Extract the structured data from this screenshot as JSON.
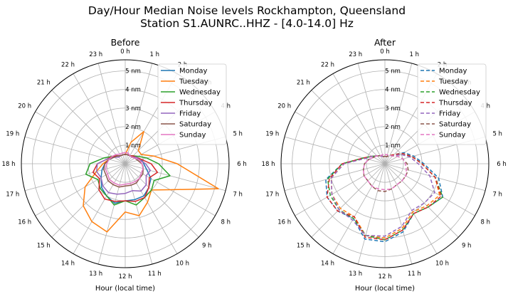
{
  "figure": {
    "title_line1": "Day/Hour Median Noise levels Rockhampton, Queensland",
    "title_line2": "Station S1.AUNRC..HHZ - [4.0-14.0] Hz"
  },
  "colors": {
    "Monday": "#1f77b4",
    "Tuesday": "#ff7f0e",
    "Wednesday": "#2ca02c",
    "Thursday": "#d62728",
    "Friday": "#9467bd",
    "Saturday": "#8c564b",
    "Sunday": "#e377c2"
  },
  "chart_data": [
    {
      "type": "line",
      "subtype": "polar",
      "title": "Before",
      "xlabel": "Hour (local time)",
      "angular_ticks": [
        "0 h",
        "1 h",
        "2 h",
        "3 h",
        "4 h",
        "5 h",
        "6 h",
        "7 h",
        "8 h",
        "9 h",
        "10 h",
        "11 h",
        "12 h",
        "13 h",
        "14 h",
        "15 h",
        "16 h",
        "17 h",
        "18 h",
        "19 h",
        "20 h",
        "21 h",
        "22 h",
        "23 h"
      ],
      "radial_ticks": [
        "1 nm",
        "2 nm",
        "3 nm",
        "4 nm",
        "5 nm"
      ],
      "radial_tick_values": [
        1,
        2,
        3,
        4,
        5
      ],
      "rlim": [
        0,
        5.6
      ],
      "direction": "clockwise",
      "zero_location": "top",
      "line_style": "solid",
      "legend_position": "top-right",
      "x": [
        0,
        1,
        2,
        3,
        4,
        5,
        6,
        7,
        8,
        9,
        10,
        11,
        12,
        13,
        14,
        15,
        16,
        17,
        18,
        19,
        20,
        21,
        22,
        23
      ],
      "series": [
        {
          "name": "Monday",
          "values": [
            0.5,
            0.5,
            0.5,
            0.6,
            0.7,
            0.9,
            1.0,
            1.2,
            1.6,
            1.8,
            2.0,
            2.0,
            2.0,
            2.2,
            2.0,
            1.8,
            1.5,
            1.3,
            1.1,
            0.9,
            0.7,
            0.6,
            0.5,
            0.5
          ]
        },
        {
          "name": "Tuesday",
          "values": [
            0.5,
            1.2,
            2.0,
            1.0,
            1.0,
            1.6,
            2.8,
            5.2,
            2.8,
            2.0,
            2.4,
            2.9,
            2.6,
            3.8,
            3.6,
            3.2,
            2.5,
            1.6,
            1.2,
            0.9,
            0.8,
            0.6,
            0.5,
            0.5
          ]
        },
        {
          "name": "Wednesday",
          "values": [
            0.5,
            0.5,
            0.5,
            0.6,
            0.8,
            1.2,
            1.8,
            2.5,
            1.8,
            2.0,
            2.1,
            2.3,
            2.0,
            2.3,
            2.0,
            1.9,
            1.7,
            2.2,
            1.9,
            1.2,
            0.8,
            0.6,
            0.5,
            0.5
          ]
        },
        {
          "name": "Thursday",
          "values": [
            0.5,
            0.5,
            0.5,
            0.6,
            0.7,
            0.9,
            1.4,
            1.8,
            1.5,
            1.8,
            2.1,
            2.1,
            2.0,
            2.1,
            2.2,
            2.0,
            1.6,
            1.8,
            1.5,
            1.0,
            0.8,
            0.6,
            0.5,
            0.5
          ]
        },
        {
          "name": "Friday",
          "values": [
            0.5,
            0.5,
            0.5,
            0.5,
            0.7,
            0.8,
            1.1,
            1.4,
            1.3,
            1.6,
            1.7,
            1.5,
            1.6,
            1.7,
            1.8,
            1.7,
            1.5,
            1.6,
            1.5,
            1.0,
            0.7,
            0.5,
            0.5,
            0.5
          ]
        },
        {
          "name": "Saturday",
          "values": [
            0.5,
            0.5,
            0.5,
            0.5,
            0.6,
            0.7,
            0.9,
            1.0,
            1.1,
            1.1,
            1.2,
            1.2,
            1.2,
            1.3,
            1.3,
            1.3,
            1.2,
            1.2,
            1.1,
            0.9,
            0.7,
            0.6,
            0.5,
            0.5
          ]
        },
        {
          "name": "Sunday",
          "values": [
            0.6,
            0.6,
            0.5,
            0.5,
            0.6,
            0.8,
            0.9,
            1.0,
            1.0,
            1.1,
            1.1,
            1.1,
            1.1,
            1.2,
            1.2,
            1.2,
            1.1,
            1.1,
            1.0,
            0.9,
            0.8,
            0.7,
            0.6,
            0.6
          ]
        }
      ]
    },
    {
      "type": "line",
      "subtype": "polar",
      "title": "After",
      "xlabel": "Hour (local time)",
      "angular_ticks": [
        "0 h",
        "1 h",
        "2 h",
        "3 h",
        "4 h",
        "5 h",
        "6 h",
        "7 h",
        "8 h",
        "9 h",
        "10 h",
        "11 h",
        "12 h",
        "13 h",
        "14 h",
        "15 h",
        "16 h",
        "17 h",
        "18 h",
        "19 h",
        "20 h",
        "21 h",
        "22 h",
        "23 h"
      ],
      "radial_ticks": [
        "1 nm",
        "2 nm",
        "3 nm",
        "4 nm",
        "5 nm"
      ],
      "radial_tick_values": [
        1,
        2,
        3,
        4,
        5
      ],
      "rlim": [
        0,
        5.6
      ],
      "direction": "clockwise",
      "zero_location": "top",
      "line_style": "dashed",
      "legend_position": "top-right",
      "x": [
        0,
        1,
        2,
        3,
        4,
        5,
        6,
        7,
        8,
        9,
        10,
        11,
        12,
        13,
        14,
        15,
        16,
        17,
        18,
        19,
        20,
        21,
        22,
        23
      ],
      "series": [
        {
          "name": "Monday",
          "values": [
            0.4,
            0.4,
            0.5,
            0.7,
            1.2,
            1.6,
            2.1,
            3.0,
            3.6,
            3.3,
            3.1,
            3.8,
            4.2,
            4.2,
            3.4,
            3.6,
            3.6,
            3.3,
            2.3,
            1.2,
            0.8,
            0.6,
            0.5,
            0.4
          ]
        },
        {
          "name": "Tuesday",
          "values": [
            0.4,
            0.4,
            0.5,
            0.7,
            1.1,
            1.5,
            2.0,
            2.8,
            3.4,
            3.2,
            3.0,
            3.6,
            4.0,
            4.0,
            3.3,
            3.4,
            3.3,
            3.0,
            2.2,
            1.2,
            0.8,
            0.6,
            0.5,
            0.4
          ]
        },
        {
          "name": "Wednesday",
          "values": [
            0.4,
            0.4,
            0.5,
            0.7,
            1.1,
            1.5,
            2.0,
            2.8,
            3.6,
            3.3,
            3.1,
            3.7,
            4.1,
            4.0,
            3.4,
            3.5,
            3.4,
            3.2,
            2.3,
            1.2,
            0.8,
            0.6,
            0.5,
            0.4
          ]
        },
        {
          "name": "Thursday",
          "values": [
            0.4,
            0.4,
            0.5,
            0.7,
            1.1,
            1.5,
            2.0,
            2.8,
            3.5,
            3.3,
            3.1,
            3.7,
            4.1,
            4.1,
            3.3,
            3.6,
            3.6,
            3.1,
            2.3,
            1.2,
            0.8,
            0.6,
            0.5,
            0.4
          ]
        },
        {
          "name": "Friday",
          "values": [
            0.4,
            0.4,
            0.5,
            0.6,
            1.0,
            1.4,
            1.8,
            2.5,
            3.1,
            3.0,
            2.9,
            3.5,
            3.9,
            4.0,
            3.5,
            3.5,
            3.3,
            3.0,
            2.2,
            1.1,
            0.8,
            0.6,
            0.5,
            0.4
          ]
        },
        {
          "name": "Saturday",
          "values": [
            0.4,
            0.4,
            0.5,
            0.6,
            0.8,
            1.0,
            1.2,
            1.3,
            1.3,
            1.3,
            1.3,
            1.4,
            1.5,
            1.5,
            1.4,
            1.3,
            1.3,
            1.2,
            1.1,
            0.9,
            0.7,
            0.6,
            0.5,
            0.4
          ]
        },
        {
          "name": "Sunday",
          "values": [
            0.5,
            0.5,
            0.5,
            0.6,
            0.8,
            1.0,
            1.1,
            1.2,
            1.3,
            1.3,
            1.3,
            1.4,
            1.4,
            1.4,
            1.4,
            1.3,
            1.3,
            1.2,
            1.1,
            0.9,
            0.7,
            0.6,
            0.5,
            0.5
          ]
        }
      ]
    }
  ]
}
